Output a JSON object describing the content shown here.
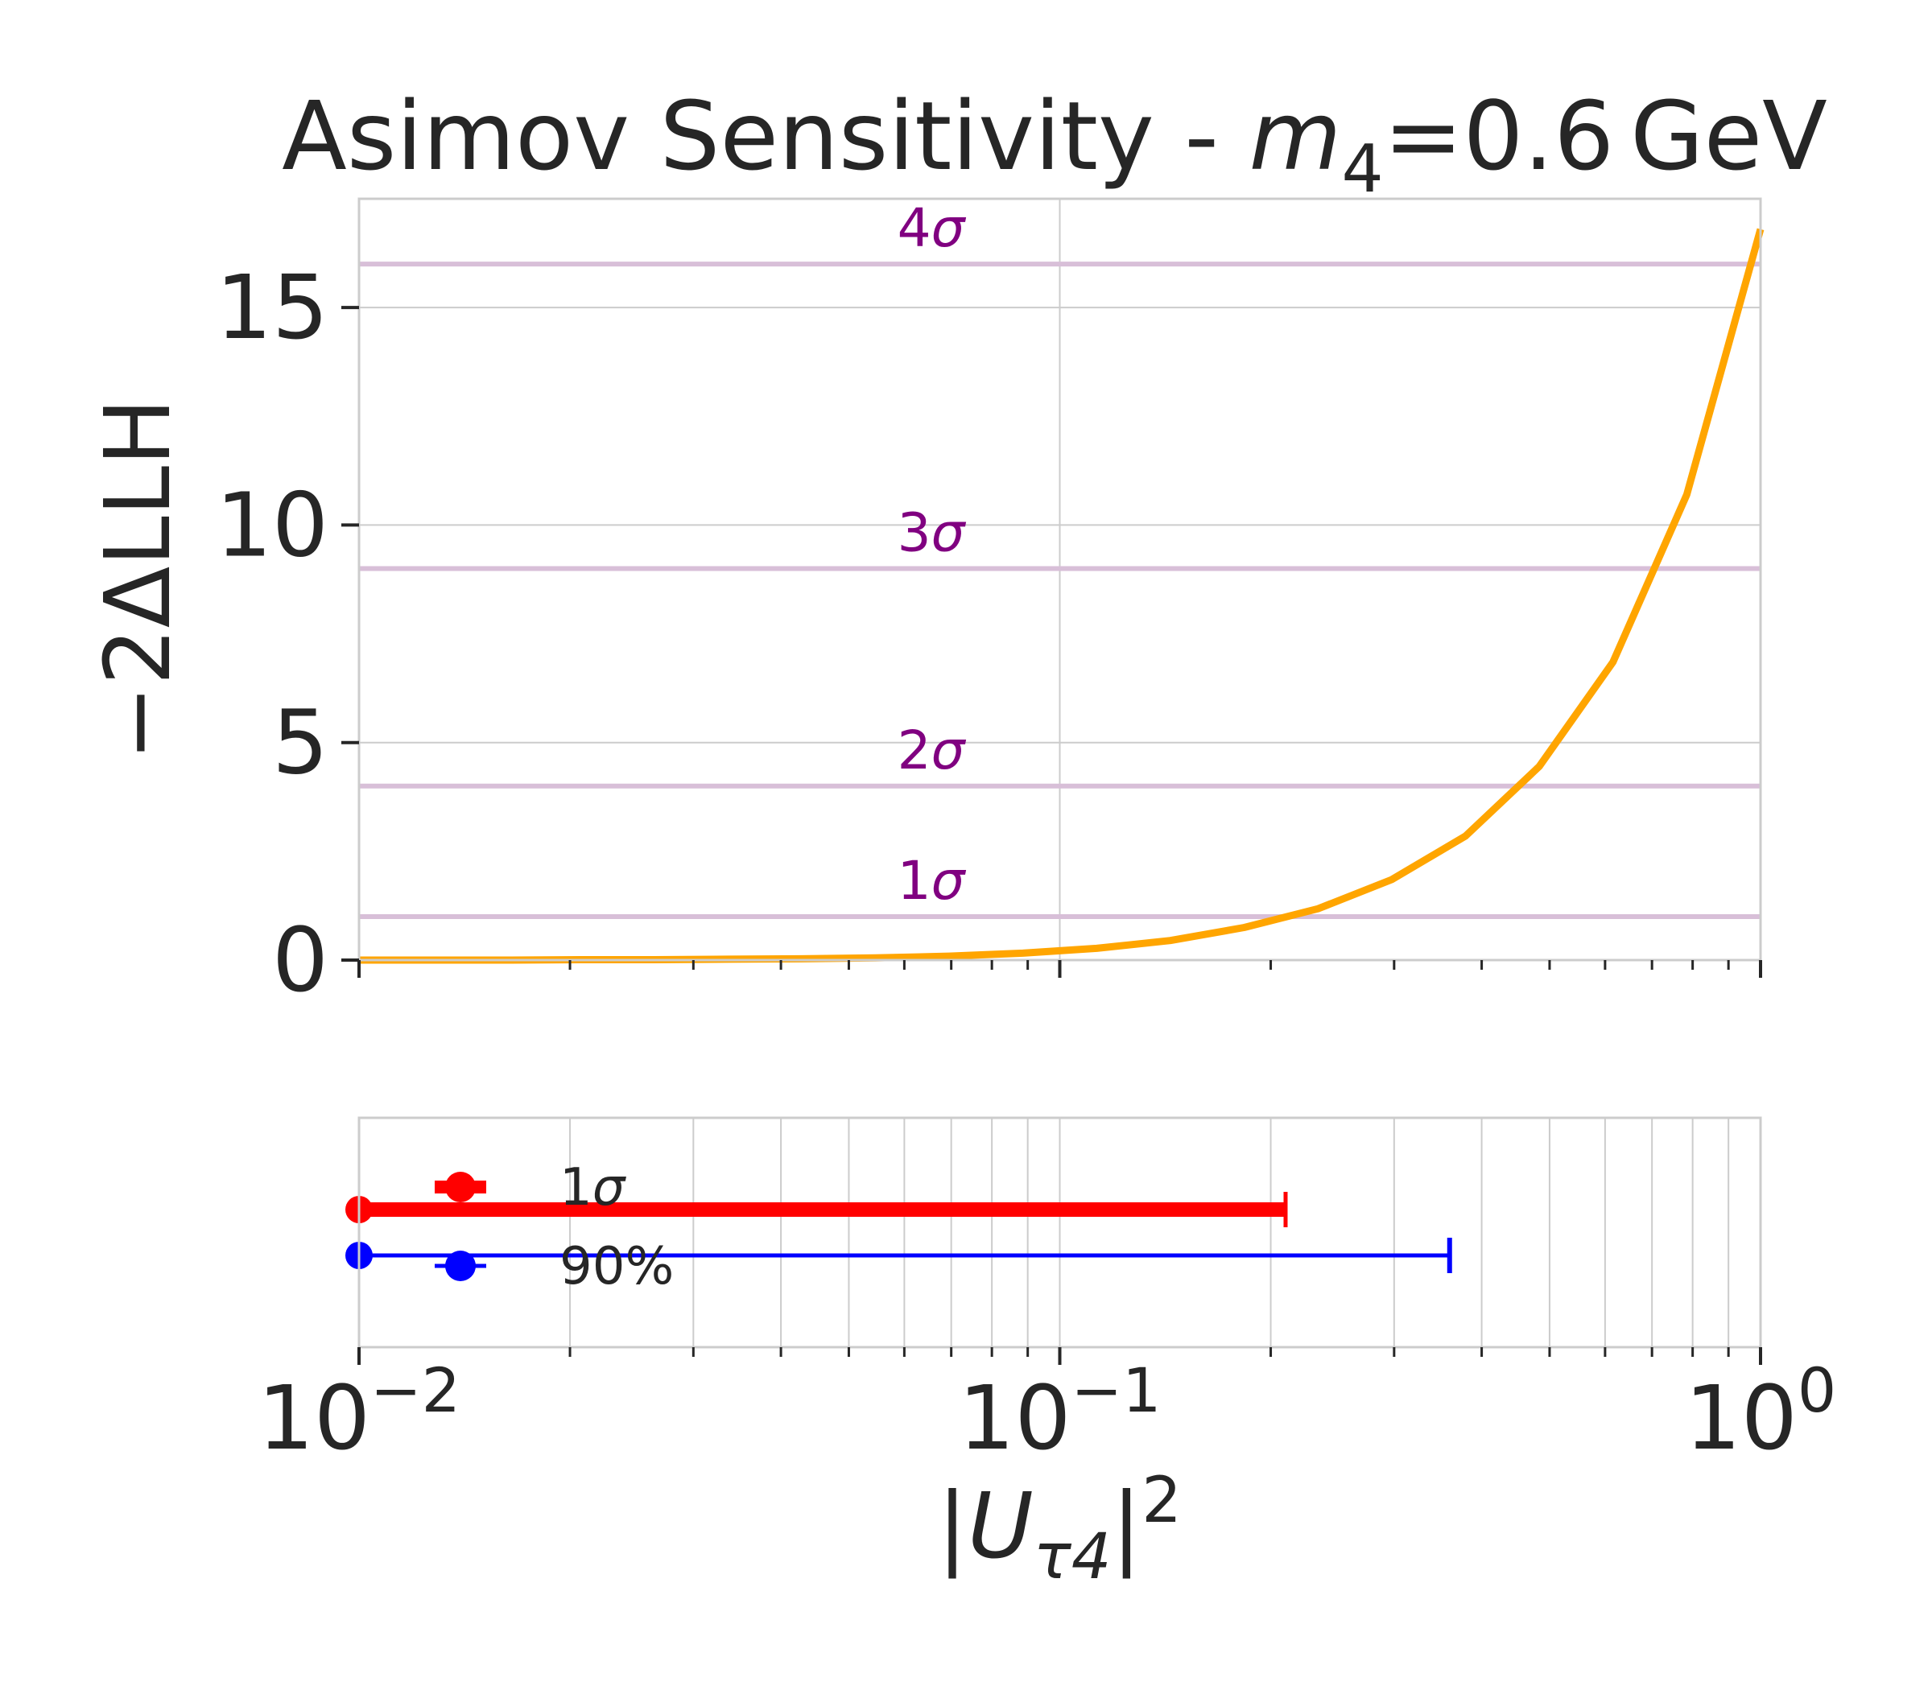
{
  "title": {
    "prefix": "Asimov Sensitivity - ",
    "mass_symbol": "m",
    "mass_subscript": "4",
    "mass_value": "=0.6",
    "mass_unit": "GeV"
  },
  "colors": {
    "curve": "#FFA500",
    "sigma_lines": "#D8BFD8",
    "sigma_labels": "#800080",
    "one_sigma": "#FF0000",
    "ninety_percent": "#0000FF",
    "grid": "#CCCCCC",
    "text": "#262626"
  },
  "chart_data": [
    {
      "type": "line",
      "ylabel": "−2ΔLLH",
      "xscale": "log",
      "xlim": [
        0.01,
        1.0
      ],
      "ylim": [
        0,
        17.5
      ],
      "grid": true,
      "y_ticks": [
        {
          "value": 0,
          "label": "0"
        },
        {
          "value": 5,
          "label": "5"
        },
        {
          "value": 10,
          "label": "10"
        },
        {
          "value": 15,
          "label": "15"
        }
      ],
      "series": [
        {
          "x": [
            0.01,
            0.0127,
            0.0162,
            0.0207,
            0.0264,
            0.0336,
            0.0428,
            0.0546,
            0.0695,
            0.0886,
            0.1129,
            0.1438,
            0.1833,
            0.2336,
            0.2976,
            0.3793,
            0.4833,
            0.6158,
            0.7848,
            1.0
          ],
          "y": [
            0.0,
            0.0,
            0.0,
            0.01,
            0.01,
            0.02,
            0.03,
            0.05,
            0.09,
            0.16,
            0.27,
            0.45,
            0.75,
            1.18,
            1.85,
            2.85,
            4.45,
            6.85,
            10.7,
            16.8
          ]
        }
      ],
      "hlines": [
        {
          "value": 1,
          "label_prefix": "1",
          "label_symbol": "σ"
        },
        {
          "value": 4,
          "label_prefix": "2",
          "label_symbol": "σ"
        },
        {
          "value": 9,
          "label_prefix": "3",
          "label_symbol": "σ"
        },
        {
          "value": 16,
          "label_prefix": "4",
          "label_symbol": "σ"
        }
      ]
    },
    {
      "type": "errorbar",
      "xscale": "log",
      "xlim": [
        0.01,
        1.0
      ],
      "grid": true,
      "xlabel": {
        "U": "U",
        "sub": "τ4",
        "sup": "2"
      },
      "x_ticks": [
        {
          "value": 0.01,
          "base": "10",
          "exp": "−2"
        },
        {
          "value": 0.1,
          "base": "10",
          "exp": "−1"
        },
        {
          "value": 1.0,
          "base": "10",
          "exp": "0"
        }
      ],
      "intervals": [
        {
          "name": "1σ",
          "x_low": 0.01,
          "x_high": 0.21,
          "level": 0.6
        },
        {
          "name": "90%",
          "x_low": 0.01,
          "x_high": 0.36,
          "level": 0.4
        }
      ],
      "legend_position": "upper-left"
    }
  ]
}
